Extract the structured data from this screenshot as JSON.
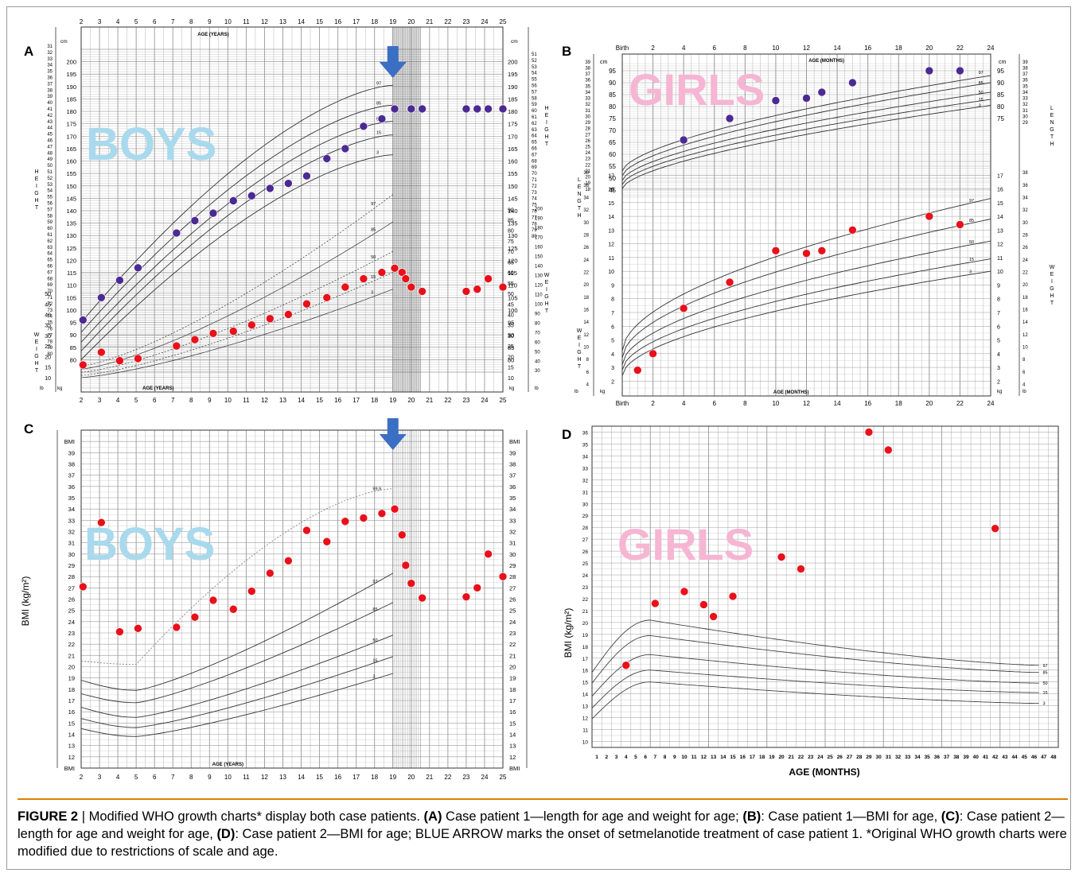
{
  "figure": {
    "panel_letters": [
      "A",
      "B",
      "C",
      "D"
    ],
    "caption": {
      "label": "FIGURE 2",
      "sep": " | ",
      "t1": "Modified WHO growth charts* display both case patients. ",
      "a": "(A)",
      "t2": " Case patient 1—length for age and weight for age; ",
      "b": "(B)",
      "t3": ": Case patient 1—BMI for age, ",
      "c": "(C)",
      "t4": ": Case patient 2—length for age and weight for age, ",
      "d": "(D)",
      "t5": ": Case patient 2—BMI for age; BLUE ARROW marks the onset of setmelanotide treatment of case patient 1. *Original WHO growth charts were modified due to restrictions of scale and age."
    }
  },
  "colors": {
    "red_dot": "#e8101a",
    "purple_dot": "#4b2a93",
    "arrow": "#3b6fc4",
    "boys_text": "#a9d9ec",
    "girls_text": "#f5b5d3",
    "grid": "#9a9a9a"
  },
  "chart_data": [
    {
      "type": "scatter",
      "panel": "A",
      "watermark": "BOYS",
      "x_ticks": [
        2,
        3,
        4,
        5,
        6,
        7,
        8,
        9,
        10,
        11,
        12,
        13,
        14,
        15,
        16,
        17,
        18,
        19,
        20,
        21,
        22,
        23,
        24,
        25
      ],
      "xlim": [
        2,
        25
      ],
      "xlabel_top": "AGE (YEARS)",
      "xlabel_bottom": "AGE (YEARS)",
      "height_unit": "cm",
      "height_ticks": [
        80,
        85,
        90,
        95,
        100,
        105,
        110,
        115,
        120,
        125,
        130,
        135,
        140,
        145,
        150,
        155,
        160,
        165,
        170,
        175,
        180,
        185,
        190,
        195,
        200
      ],
      "height_inch_ticks": [
        31,
        32,
        33,
        34,
        35,
        36,
        37,
        38,
        39,
        40,
        41,
        42,
        43,
        44,
        45,
        46,
        47,
        48,
        49,
        50,
        51,
        52,
        53,
        54,
        55,
        56,
        57,
        58,
        59,
        60,
        61,
        62,
        63,
        64,
        65,
        66,
        67,
        68,
        69,
        70,
        71,
        72,
        73,
        74,
        75,
        76,
        77,
        78,
        79,
        80
      ],
      "height_label": "HEIGHT",
      "weight_unit": "kg",
      "weight_ticks": [
        10,
        15,
        20,
        25,
        30,
        35,
        40,
        45,
        50,
        55,
        60,
        65,
        70,
        75,
        80,
        85,
        90
      ],
      "weight_lb_ticks": [
        30,
        40,
        50,
        60,
        70,
        80,
        90,
        100,
        110,
        120,
        130,
        140,
        150,
        160,
        170,
        180,
        190,
        200
      ],
      "weight_label": "WEIGHT",
      "percentile_labels": [
        "97",
        "85",
        "50",
        "15",
        "3"
      ],
      "treatment_arrow_x": 19,
      "series": [
        {
          "name": "height",
          "x": [
            2.1,
            3.1,
            4.1,
            5.1,
            7.2,
            8.2,
            9.2,
            10.3,
            11.3,
            12.3,
            13.3,
            14.3,
            15.4,
            16.4,
            17.4,
            18.4,
            19.1,
            20,
            20.6,
            23,
            23.6,
            24.2,
            25
          ],
          "y": [
            96,
            105,
            112,
            117,
            131,
            136,
            139,
            144,
            146,
            149,
            151,
            154,
            161,
            165,
            174,
            177,
            181,
            181,
            181,
            181,
            181,
            181,
            181
          ]
        },
        {
          "name": "weight",
          "x": [
            2.1,
            3.1,
            4.1,
            5.1,
            7.2,
            8.2,
            9.2,
            10.3,
            11.3,
            12.3,
            13.3,
            14.3,
            15.4,
            16.4,
            17.4,
            18.4,
            19.1,
            19.5,
            19.7,
            20,
            20.6,
            23,
            23.6,
            24.2,
            25
          ],
          "y": [
            16,
            22,
            18,
            19,
            25,
            28,
            31,
            32,
            35,
            38,
            40,
            45,
            48,
            53,
            57,
            60,
            62,
            60,
            57,
            53,
            51,
            51,
            52,
            57,
            53
          ]
        }
      ]
    },
    {
      "type": "scatter",
      "panel": "B",
      "watermark": "GIRLS",
      "x_tick_labels": [
        "Birth",
        "2",
        "4",
        "6",
        "8",
        "10",
        "12",
        "14",
        "16",
        "18",
        "20",
        "22",
        "24"
      ],
      "xlim": [
        0,
        24
      ],
      "xlabel_top": "AGE (MONTHS)",
      "xlabel_bottom": "AGE (MONTHS)",
      "length_unit": "cm",
      "length_ticks": [
        45,
        50,
        55,
        60,
        65,
        70,
        75,
        80,
        85,
        90,
        95
      ],
      "length_inch_ticks": [
        18,
        19,
        20,
        21,
        22,
        23,
        24,
        25,
        26,
        27,
        28,
        29,
        30,
        31,
        32,
        33,
        34,
        35,
        36,
        37,
        38,
        39
      ],
      "length_label": "LENGTH",
      "weight_unit": "kg",
      "weight_ticks": [
        2,
        3,
        4,
        5,
        6,
        7,
        8,
        9,
        10,
        11,
        12,
        13,
        14,
        15,
        16,
        17
      ],
      "weight_lb_ticks": [
        4,
        6,
        8,
        10,
        12,
        14,
        16,
        18,
        20,
        22,
        24,
        26,
        28,
        30,
        32,
        34,
        36,
        38
      ],
      "weight_label": "WEIGHT",
      "percentile_labels": [
        "97",
        "85",
        "50",
        "15",
        "3"
      ],
      "series": [
        {
          "name": "length",
          "x": [
            4,
            7,
            10,
            12,
            13,
            15,
            20,
            22
          ],
          "y": [
            66,
            75,
            82.5,
            83.5,
            86,
            90,
            95,
            95
          ]
        },
        {
          "name": "weight",
          "x": [
            1,
            2,
            4,
            7,
            10,
            12,
            13,
            15,
            20,
            22
          ],
          "y": [
            2.8,
            4,
            7.3,
            9.2,
            11.5,
            11.3,
            11.5,
            13,
            14,
            13.4
          ]
        }
      ]
    },
    {
      "type": "scatter",
      "panel": "C",
      "watermark": "BOYS",
      "x_ticks": [
        2,
        3,
        4,
        5,
        6,
        7,
        8,
        9,
        10,
        11,
        12,
        13,
        14,
        15,
        16,
        17,
        18,
        19,
        20,
        21,
        22,
        23,
        24,
        25
      ],
      "xlim": [
        2,
        25
      ],
      "xlabel": "AGE (YEARS)",
      "ylabel": "BMI (kg/m²)",
      "y_ticks": [
        12,
        13,
        14,
        15,
        16,
        17,
        18,
        19,
        20,
        21,
        22,
        23,
        24,
        25,
        26,
        27,
        28,
        29,
        30,
        31,
        32,
        33,
        34,
        35,
        36,
        37,
        38,
        39
      ],
      "y_end_label": "BMI",
      "ylim": [
        11,
        41
      ],
      "percentile_labels": [
        "99.9",
        "97",
        "85",
        "50",
        "15",
        "3"
      ],
      "treatment_arrow_x": 19,
      "series": [
        {
          "name": "BMI",
          "x": [
            2.1,
            3.1,
            4.1,
            5.1,
            7.2,
            8.2,
            9.2,
            10.3,
            11.3,
            12.3,
            13.3,
            14.3,
            15.4,
            16.4,
            17.4,
            18.4,
            19.1,
            19.5,
            19.7,
            20,
            20.6,
            23,
            23.6,
            24.2,
            25
          ],
          "y": [
            27.1,
            32.8,
            23.1,
            23.4,
            23.5,
            24.4,
            25.9,
            25.1,
            26.7,
            28.3,
            29.4,
            32.1,
            31.1,
            32.9,
            33.2,
            33.6,
            34,
            31.7,
            29,
            27.4,
            26.1,
            26.2,
            27,
            30,
            28
          ]
        }
      ]
    },
    {
      "type": "scatter",
      "panel": "D",
      "watermark": "GIRLS",
      "x_ticks": [
        1,
        2,
        3,
        4,
        5,
        6,
        7,
        8,
        9,
        10,
        11,
        12,
        13,
        14,
        15,
        16,
        17,
        18,
        19,
        20,
        21,
        22,
        23,
        24,
        25,
        26,
        27,
        28,
        29,
        30,
        31,
        32,
        33,
        34,
        35,
        36,
        37,
        38,
        39,
        40,
        41,
        42,
        43,
        44,
        45,
        46,
        47,
        48
      ],
      "xlim": [
        0.5,
        48.5
      ],
      "xlabel": "AGE (MONTHS)",
      "ylabel": "BMI (kg/m²)",
      "y_ticks": [
        10,
        11,
        12,
        13,
        14,
        15,
        16,
        17,
        18,
        19,
        20,
        21,
        22,
        23,
        24,
        25,
        26,
        27,
        28,
        29,
        30,
        31,
        32,
        33,
        34,
        35,
        36
      ],
      "ylim": [
        9.5,
        36.5
      ],
      "percentile_labels": [
        "97",
        "85",
        "50",
        "15",
        "3"
      ],
      "series": [
        {
          "name": "BMI",
          "x": [
            4,
            7,
            10,
            12,
            13,
            15,
            20,
            22,
            29,
            31,
            42
          ],
          "y": [
            16.4,
            21.6,
            22.6,
            21.5,
            20.5,
            22.2,
            25.5,
            24.5,
            36,
            34.5,
            27.9
          ]
        }
      ]
    }
  ]
}
